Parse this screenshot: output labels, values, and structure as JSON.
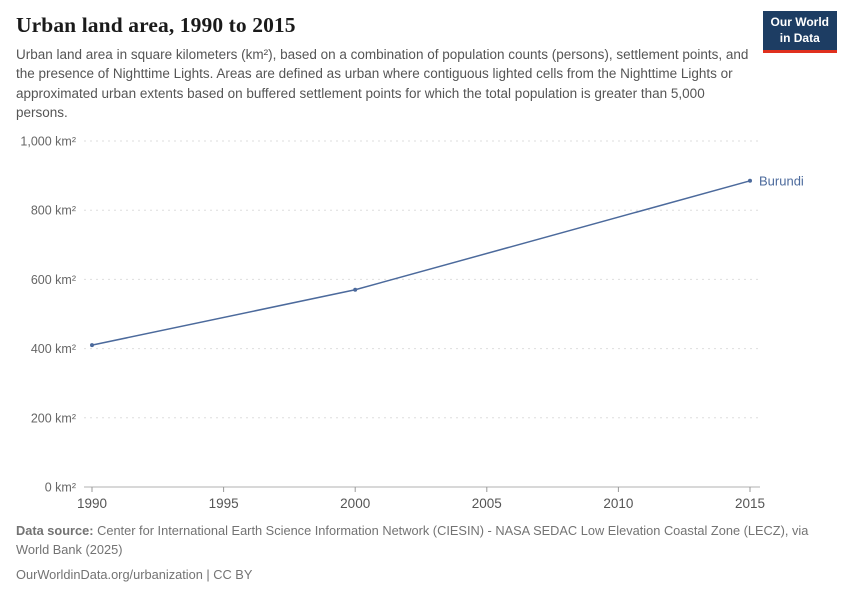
{
  "logo": {
    "line1": "Our World",
    "line2": "in Data"
  },
  "header": {
    "title": "Urban land area, 1990 to 2015",
    "subtitle": "Urban land area in square kilometers (km²), based on a combination of population counts (persons), settlement points, and the presence of Nighttime Lights. Areas are defined as urban where contiguous lighted cells from the Nighttime Lights or approximated urban extents based on buffered settlement points for which the total population is greater than 5,000 persons."
  },
  "chart_data": {
    "type": "line",
    "title": "Urban land area, 1990 to 2015",
    "xlabel": "",
    "ylabel": "",
    "xlim": [
      1990,
      2015
    ],
    "ylim": [
      0,
      1000
    ],
    "x_ticks": [
      1990,
      1995,
      2000,
      2005,
      2010,
      2015
    ],
    "y_ticks": [
      0,
      200,
      400,
      600,
      800,
      1000
    ],
    "y_tick_labels": [
      "0 km²",
      "200 km²",
      "400 km²",
      "600 km²",
      "800 km²",
      "1,000 km²"
    ],
    "grid": "horizontal-dashed",
    "legend_position": "end-of-line-label",
    "series": [
      {
        "name": "Burundi",
        "color": "#4c6a9c",
        "points": [
          [
            1990,
            410
          ],
          [
            2000,
            570
          ],
          [
            2015,
            885
          ]
        ]
      }
    ]
  },
  "footer": {
    "data_source_label": "Data source:",
    "data_source_text": " Center for International Earth Science Information Network (CIESIN) - NASA SEDAC Low Elevation Coastal Zone (LECZ), via World Bank (2025)",
    "license": "OurWorldinData.org/urbanization | CC BY"
  },
  "colors": {
    "logo_bg": "#1d3d63",
    "logo_accent": "#e0301e",
    "series_line": "#4c6a9c",
    "title_text": "#1a1a1a",
    "subtitle_text": "#555555",
    "footer_text": "#737373",
    "gridline": "#dedede",
    "axis_line": "#b0b0b0",
    "axis_text": "#666666"
  }
}
